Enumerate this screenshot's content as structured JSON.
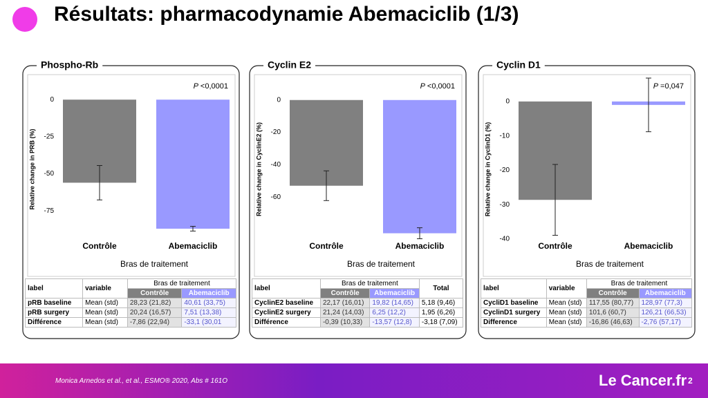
{
  "title": "Résultats: pharmacodynamie Abemaciclib (1/3)",
  "chart_data": [
    {
      "type": "bar",
      "title": "Phospho-Rb",
      "annotation": {
        "label": "P",
        "text": "<0,0001"
      },
      "ylabel": "Relative change in PRB (%)",
      "xlabel": "Bras de traitement",
      "categories": [
        "Contrôle",
        "Abemaciclib"
      ],
      "values": [
        -56,
        -87
      ],
      "errors": [
        11.6,
        1.6
      ],
      "colors": [
        "#808080",
        "#9999ff"
      ],
      "ylim": [
        -94,
        15
      ],
      "yticks": [
        0,
        -25,
        -50,
        -75
      ]
    },
    {
      "type": "bar",
      "title": "Cyclin E2",
      "annotation": {
        "label": "P",
        "text": "<0,0001"
      },
      "ylabel": "Relative change in CyclinE2 (%)",
      "xlabel": "Bras de traitement",
      "categories": [
        "Contrôle",
        "Abemaciclib"
      ],
      "values": [
        -53,
        -82.4
      ],
      "errors": [
        9.2,
        3.4
      ],
      "colors": [
        "#808080",
        "#9999ff"
      ],
      "ylim": [
        -86,
        14
      ],
      "yticks": [
        0,
        -20,
        -40,
        -60
      ]
    },
    {
      "type": "bar",
      "title": "Cyclin D1",
      "annotation": {
        "label": "P",
        "text": "=0,047"
      },
      "ylabel": "Relative change in CyclinD1 (%)",
      "xlabel": "Bras de traitement",
      "categories": [
        "Contrôle",
        "Abemaciclib"
      ],
      "values": [
        -28.6,
        -1
      ],
      "errors": [
        10.3,
        7.8
      ],
      "colors": [
        "#808080",
        "#9999ff"
      ],
      "ylim": [
        -40,
        7
      ],
      "yticks": [
        0,
        -10,
        -20,
        -30,
        -40
      ]
    }
  ],
  "tables": [
    {
      "headers": [
        "label",
        "variable"
      ],
      "group": "Bras de traitement",
      "subheaders": [
        "Contrôle",
        "Abemaciclib"
      ],
      "headers_after": [],
      "rows": [
        [
          "pRB baseline",
          "Mean (std)",
          "28,23 (21,82)",
          "40,61 (33,75)"
        ],
        [
          "pRB surgery",
          "Mean (std)",
          "20,24 (16,57)",
          "7,51 (13,38)"
        ],
        [
          "Différence",
          "Mean (std)",
          "-7,86 (22,94)",
          "-33,1 (30,01"
        ]
      ]
    },
    {
      "headers": [
        "label"
      ],
      "group": "Bras de traitement",
      "subheaders": [
        "Contrôle",
        "Abemaciclib"
      ],
      "headers_after": [
        "Total"
      ],
      "rows": [
        [
          "CyclinE2 baseline",
          "22,17 (16,01)",
          "19,82 (14,65)",
          "5,18 (9,46)"
        ],
        [
          "CyclinE2 surgery",
          "21,24 (14,03)",
          "6,25 (12,2)",
          "1,95 (6,26)"
        ],
        [
          "Différence",
          "-0,39 (10,33)",
          "-13,57 (12,8)",
          "-3,18 (7,09)"
        ]
      ]
    },
    {
      "headers": [
        "label",
        "variable"
      ],
      "group": "Bras de traitement",
      "subheaders": [
        "Contrôle",
        "Abemaciclib"
      ],
      "headers_after": [],
      "rows": [
        [
          "CycliD1 baseline",
          "Mean (std)",
          "117,55 (80,77)",
          "128,97 (77,3)"
        ],
        [
          "CyclinD1 surgery",
          "Mean (std)",
          "101,6 (60,7)",
          "126,21 (66,53)"
        ],
        [
          "Difference",
          "Mean (std)",
          "-16,86 (46,63)",
          "-2,76 (57,17)"
        ]
      ]
    }
  ],
  "footer": {
    "reference": "Monica Arnedos et al., et al., ESMO® 2020, Abs # 161O",
    "logo": "Le Cancer.fr",
    "page": "2"
  }
}
